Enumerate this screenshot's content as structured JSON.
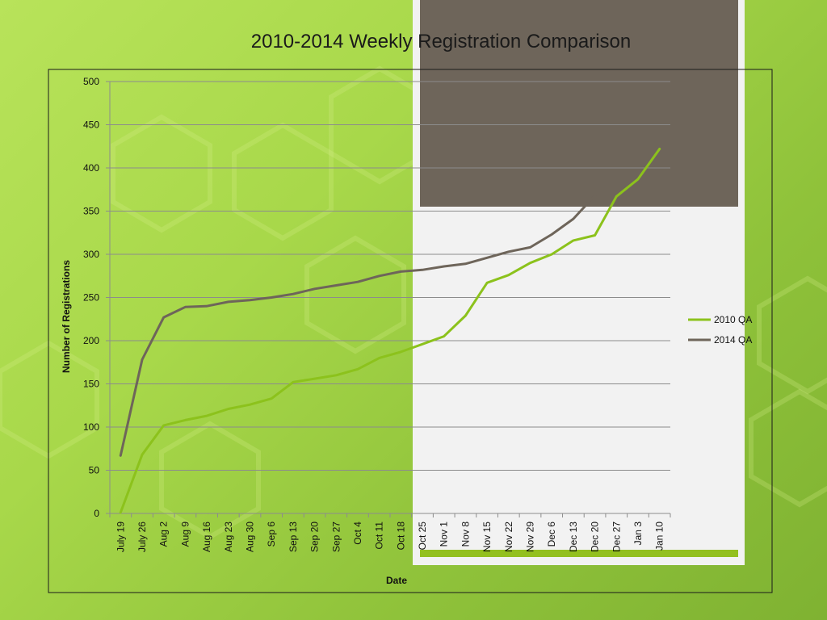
{
  "slide": {
    "colors": {
      "white_panel": "#f2f2f2",
      "gray_block": "#6e655a",
      "accent_bar": "#93c01f"
    }
  },
  "chart_data": {
    "type": "line",
    "title": "2010-2014 Weekly Registration Comparison",
    "xlabel": "Date",
    "ylabel": "Number of Registrations",
    "ylim": [
      0,
      500
    ],
    "yticks": [
      0,
      50,
      100,
      150,
      200,
      250,
      300,
      350,
      400,
      450,
      500
    ],
    "grid": true,
    "legend_position": "right",
    "categories": [
      "July 19",
      "July 26",
      "Aug 2",
      "Aug 9",
      "Aug 16",
      "Aug 23",
      "Aug 30",
      "Sep 6",
      "Sep 13",
      "Sep 20",
      "Sep 27",
      "Oct 4",
      "Oct 11",
      "Oct 18",
      "Oct 25",
      "Nov 1",
      "Nov 8",
      "Nov 15",
      "Nov 22",
      "Nov 29",
      "Dec 6",
      "Dec 13",
      "Dec 20",
      "Dec 27",
      "Jan 3",
      "Jan 10"
    ],
    "series": [
      {
        "name": "2010 QA",
        "color": "#8cc21c",
        "values": [
          1,
          68,
          102,
          108,
          113,
          121,
          126,
          133,
          152,
          156,
          160,
          167,
          180,
          187,
          196,
          205,
          229,
          267,
          276,
          290,
          300,
          316,
          322,
          367,
          387,
          422
        ]
      },
      {
        "name": "2014 QA",
        "color": "#6e655a",
        "values": [
          67,
          178,
          227,
          239,
          240,
          245,
          247,
          250,
          254,
          260,
          264,
          268,
          275,
          280,
          282,
          286,
          289,
          296,
          303,
          308,
          323,
          341,
          368,
          null,
          null,
          null
        ]
      }
    ]
  }
}
